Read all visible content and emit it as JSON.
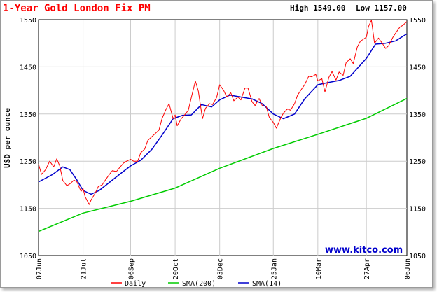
{
  "chart_data": {
    "type": "line",
    "title": "1-Year Gold London Fix PM",
    "summary": {
      "high": "High 1549.00",
      "low": "Low 1157.00"
    },
    "ylabel": "USD per ounce",
    "ylim": [
      1050,
      1550
    ],
    "yticks": [
      "1550",
      "1450",
      "1350",
      "1250",
      "1150",
      "1050"
    ],
    "xlim": [
      "2010-06-07",
      "2011-06-06"
    ],
    "xticks": [
      {
        "date": "2010-06-07",
        "label": "07Jun"
      },
      {
        "date": "2010-07-21",
        "label": "21Jul"
      },
      {
        "date": "2010-09-06",
        "label": "06Sep"
      },
      {
        "date": "2010-10-20",
        "label": "20Oct"
      },
      {
        "date": "2010-12-03",
        "label": "03Dec"
      },
      {
        "date": "2011-01-25",
        "label": "25Jan"
      },
      {
        "date": "2011-03-10",
        "label": "10Mar"
      },
      {
        "date": "2011-04-27",
        "label": "27Apr"
      },
      {
        "date": "2011-06-06",
        "label": "06Jun"
      }
    ],
    "grid": true,
    "legend": "bottom",
    "watermark": "www.kitco.com",
    "series": [
      {
        "name": "Daily",
        "color": "#ff0000",
        "points": [
          [
            "2010-06-07",
            1244
          ],
          [
            "2010-06-10",
            1222
          ],
          [
            "2010-06-14",
            1232
          ],
          [
            "2010-06-18",
            1250
          ],
          [
            "2010-06-22",
            1238
          ],
          [
            "2010-06-25",
            1255
          ],
          [
            "2010-06-28",
            1240
          ],
          [
            "2010-07-01",
            1209
          ],
          [
            "2010-07-05",
            1198
          ],
          [
            "2010-07-08",
            1202
          ],
          [
            "2010-07-12",
            1210
          ],
          [
            "2010-07-15",
            1206
          ],
          [
            "2010-07-19",
            1186
          ],
          [
            "2010-07-21",
            1192
          ],
          [
            "2010-07-23",
            1175
          ],
          [
            "2010-07-27",
            1158
          ],
          [
            "2010-07-29",
            1168
          ],
          [
            "2010-08-02",
            1182
          ],
          [
            "2010-08-05",
            1196
          ],
          [
            "2010-08-09",
            1200
          ],
          [
            "2010-08-12",
            1210
          ],
          [
            "2010-08-16",
            1222
          ],
          [
            "2010-08-19",
            1230
          ],
          [
            "2010-08-23",
            1228
          ],
          [
            "2010-08-26",
            1236
          ],
          [
            "2010-08-30",
            1246
          ],
          [
            "2010-09-02",
            1250
          ],
          [
            "2010-09-06",
            1254
          ],
          [
            "2010-09-09",
            1250
          ],
          [
            "2010-09-13",
            1250
          ],
          [
            "2010-09-16",
            1268
          ],
          [
            "2010-09-20",
            1276
          ],
          [
            "2010-09-23",
            1294
          ],
          [
            "2010-09-27",
            1302
          ],
          [
            "2010-09-30",
            1308
          ],
          [
            "2010-10-04",
            1316
          ],
          [
            "2010-10-07",
            1340
          ],
          [
            "2010-10-11",
            1360
          ],
          [
            "2010-10-14",
            1372
          ],
          [
            "2010-10-18",
            1340
          ],
          [
            "2010-10-20",
            1348
          ],
          [
            "2010-10-22",
            1325
          ],
          [
            "2010-10-26",
            1340
          ],
          [
            "2010-10-29",
            1347
          ],
          [
            "2010-11-02",
            1358
          ],
          [
            "2010-11-05",
            1385
          ],
          [
            "2010-11-09",
            1420
          ],
          [
            "2010-11-12",
            1398
          ],
          [
            "2010-11-16",
            1340
          ],
          [
            "2010-11-19",
            1362
          ],
          [
            "2010-11-23",
            1372
          ],
          [
            "2010-11-26",
            1370
          ],
          [
            "2010-11-30",
            1385
          ],
          [
            "2010-12-03",
            1412
          ],
          [
            "2010-12-07",
            1400
          ],
          [
            "2010-12-10",
            1386
          ],
          [
            "2010-12-14",
            1395
          ],
          [
            "2010-12-17",
            1378
          ],
          [
            "2010-12-21",
            1386
          ],
          [
            "2010-12-24",
            1380
          ],
          [
            "2010-12-28",
            1405
          ],
          [
            "2010-12-31",
            1405
          ],
          [
            "2011-01-04",
            1376
          ],
          [
            "2011-01-07",
            1368
          ],
          [
            "2011-01-11",
            1383
          ],
          [
            "2011-01-14",
            1368
          ],
          [
            "2011-01-18",
            1366
          ],
          [
            "2011-01-21",
            1343
          ],
          [
            "2011-01-25",
            1332
          ],
          [
            "2011-01-28",
            1320
          ],
          [
            "2011-02-01",
            1340
          ],
          [
            "2011-02-04",
            1352
          ],
          [
            "2011-02-08",
            1361
          ],
          [
            "2011-02-11",
            1358
          ],
          [
            "2011-02-15",
            1372
          ],
          [
            "2011-02-18",
            1390
          ],
          [
            "2011-02-22",
            1403
          ],
          [
            "2011-02-25",
            1412
          ],
          [
            "2011-03-01",
            1430
          ],
          [
            "2011-03-04",
            1429
          ],
          [
            "2011-03-08",
            1434
          ],
          [
            "2011-03-10",
            1420
          ],
          [
            "2011-03-14",
            1425
          ],
          [
            "2011-03-17",
            1397
          ],
          [
            "2011-03-21",
            1428
          ],
          [
            "2011-03-24",
            1440
          ],
          [
            "2011-03-28",
            1422
          ],
          [
            "2011-03-31",
            1439
          ],
          [
            "2011-04-04",
            1432
          ],
          [
            "2011-04-07",
            1459
          ],
          [
            "2011-04-11",
            1467
          ],
          [
            "2011-04-14",
            1457
          ],
          [
            "2011-04-18",
            1492
          ],
          [
            "2011-04-21",
            1504
          ],
          [
            "2011-04-25",
            1510
          ],
          [
            "2011-04-27",
            1513
          ],
          [
            "2011-04-29",
            1535
          ],
          [
            "2011-05-02",
            1549
          ],
          [
            "2011-05-05",
            1500
          ],
          [
            "2011-05-09",
            1511
          ],
          [
            "2011-05-12",
            1502
          ],
          [
            "2011-05-16",
            1489
          ],
          [
            "2011-05-19",
            1495
          ],
          [
            "2011-05-23",
            1512
          ],
          [
            "2011-05-26",
            1522
          ],
          [
            "2011-05-30",
            1534
          ],
          [
            "2011-06-02",
            1538
          ],
          [
            "2011-06-06",
            1546
          ]
        ]
      },
      {
        "name": "SMA(200)",
        "color": "#00cc00",
        "points": [
          [
            "2010-06-07",
            1101
          ],
          [
            "2010-07-21",
            1140
          ],
          [
            "2010-09-06",
            1165
          ],
          [
            "2010-10-20",
            1193
          ],
          [
            "2010-12-03",
            1235
          ],
          [
            "2011-01-25",
            1277
          ],
          [
            "2011-03-10",
            1307
          ],
          [
            "2011-04-27",
            1341
          ],
          [
            "2011-06-06",
            1383
          ]
        ]
      },
      {
        "name": "SMA(14)",
        "color": "#0000cc",
        "points": [
          [
            "2010-06-07",
            1206
          ],
          [
            "2010-06-21",
            1222
          ],
          [
            "2010-07-01",
            1238
          ],
          [
            "2010-07-08",
            1232
          ],
          [
            "2010-07-15",
            1210
          ],
          [
            "2010-07-21",
            1188
          ],
          [
            "2010-07-29",
            1180
          ],
          [
            "2010-08-06",
            1188
          ],
          [
            "2010-08-16",
            1205
          ],
          [
            "2010-08-26",
            1222
          ],
          [
            "2010-09-06",
            1240
          ],
          [
            "2010-09-16",
            1252
          ],
          [
            "2010-09-27",
            1275
          ],
          [
            "2010-10-07",
            1305
          ],
          [
            "2010-10-18",
            1340
          ],
          [
            "2010-10-27",
            1347
          ],
          [
            "2010-11-05",
            1348
          ],
          [
            "2010-11-15",
            1370
          ],
          [
            "2010-11-25",
            1365
          ],
          [
            "2010-12-03",
            1380
          ],
          [
            "2010-12-13",
            1390
          ],
          [
            "2010-12-24",
            1386
          ],
          [
            "2011-01-04",
            1382
          ],
          [
            "2011-01-14",
            1372
          ],
          [
            "2011-01-25",
            1350
          ],
          [
            "2011-02-04",
            1340
          ],
          [
            "2011-02-15",
            1350
          ],
          [
            "2011-02-25",
            1382
          ],
          [
            "2011-03-10",
            1412
          ],
          [
            "2011-03-21",
            1417
          ],
          [
            "2011-03-31",
            1421
          ],
          [
            "2011-04-11",
            1430
          ],
          [
            "2011-04-27",
            1468
          ],
          [
            "2011-05-06",
            1498
          ],
          [
            "2011-05-16",
            1500
          ],
          [
            "2011-05-26",
            1505
          ],
          [
            "2011-06-06",
            1520
          ]
        ]
      }
    ]
  }
}
